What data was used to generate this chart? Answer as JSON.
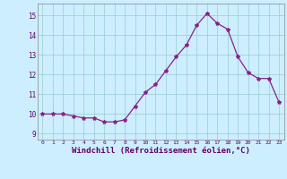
{
  "x": [
    0,
    1,
    2,
    3,
    4,
    5,
    6,
    7,
    8,
    9,
    10,
    11,
    12,
    13,
    14,
    15,
    16,
    17,
    18,
    19,
    20,
    21,
    22,
    23
  ],
  "y": [
    10.0,
    10.0,
    10.0,
    9.9,
    9.8,
    9.8,
    9.6,
    9.6,
    9.7,
    10.4,
    11.1,
    11.5,
    12.2,
    12.9,
    13.5,
    14.5,
    15.1,
    14.6,
    14.3,
    12.9,
    12.1,
    11.8,
    11.8,
    10.6
  ],
  "line_color": "#882288",
  "marker": "*",
  "marker_size": 3.0,
  "bg_color": "#cceeff",
  "grid_color": "#99cccc",
  "xlabel": "Windchill (Refroidissement éolien,°C)",
  "yticks": [
    9,
    10,
    11,
    12,
    13,
    14,
    15
  ],
  "xticks": [
    0,
    1,
    2,
    3,
    4,
    5,
    6,
    7,
    8,
    9,
    10,
    11,
    12,
    13,
    14,
    15,
    16,
    17,
    18,
    19,
    20,
    21,
    22,
    23
  ],
  "ylim": [
    8.7,
    15.6
  ],
  "xlim": [
    -0.5,
    23.5
  ],
  "tick_color": "#660066"
}
